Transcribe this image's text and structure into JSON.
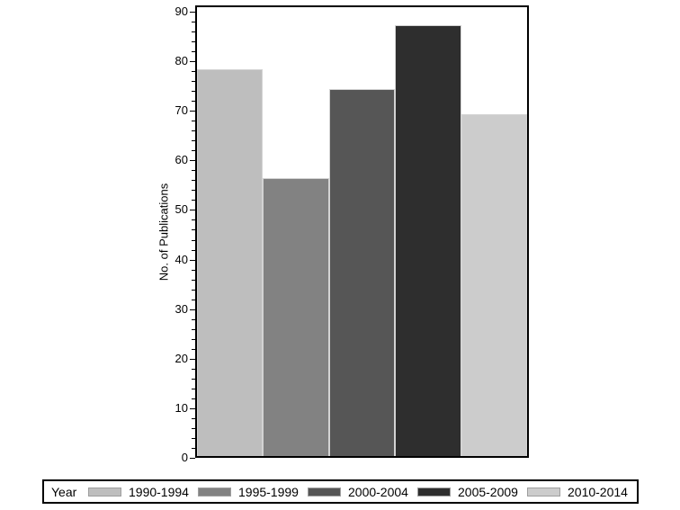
{
  "chart_data": {
    "type": "bar",
    "title": "",
    "xlabel": "",
    "ylabel": "No. of Publications",
    "categories": [
      "1990-1994",
      "1995-1999",
      "2000-2004",
      "2005-2009",
      "2010-2014"
    ],
    "values": [
      78,
      56,
      74,
      87,
      69
    ],
    "ylim": [
      0,
      90
    ],
    "y_tick_labels": [
      "0",
      "10",
      "20",
      "30",
      "40",
      "50",
      "60",
      "70",
      "80",
      "90"
    ],
    "y_major_tick_step": 10,
    "y_minor_tick_step": 2,
    "grid": false,
    "legend_position": "bottom",
    "legend_title": "Year",
    "bar_colors": [
      "#bebebe",
      "#828282",
      "#565656",
      "#2e2e2e",
      "#cccccc"
    ],
    "bar_outline_color": "#d3d3d3",
    "axis_color": "#000000",
    "background_color": "#ffffff"
  }
}
